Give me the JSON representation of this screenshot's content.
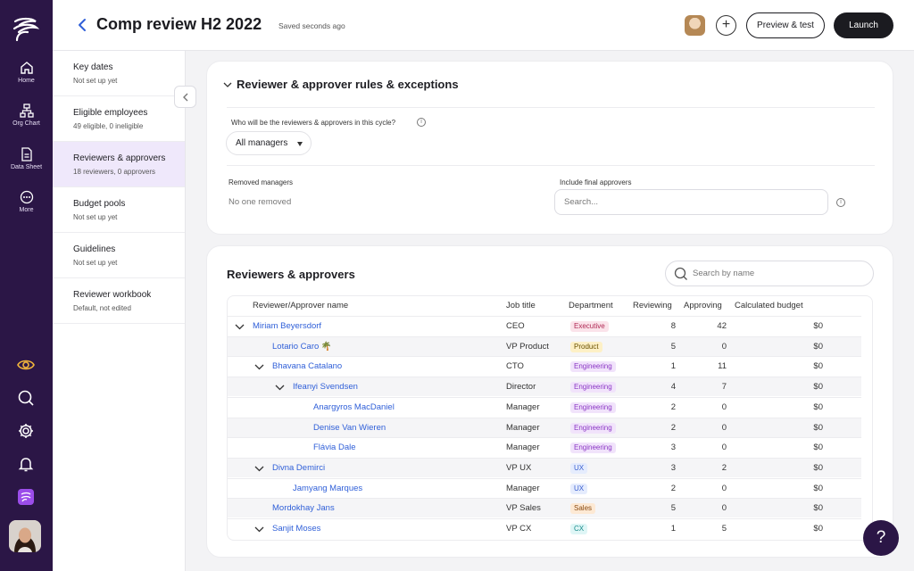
{
  "rail": {
    "items": [
      {
        "label": "Home",
        "icon": "home-icon"
      },
      {
        "label": "Org Chart",
        "icon": "org-chart-icon"
      },
      {
        "label": "Data Sheet",
        "icon": "data-sheet-icon"
      },
      {
        "label": "More",
        "icon": "more-icon"
      }
    ],
    "bottom_icons": [
      "eye-icon",
      "search-icon",
      "gear-icon",
      "bell-icon",
      "app-icon"
    ]
  },
  "header": {
    "title": "Comp review H2 2022",
    "saved_status": "Saved seconds ago",
    "add_label": "+",
    "preview_label": "Preview & test",
    "launch_label": "Launch"
  },
  "sidenav": {
    "items": [
      {
        "title": "Key dates",
        "sub": "Not set up yet"
      },
      {
        "title": "Eligible employees",
        "sub": "49 eligible, 0 ineligible"
      },
      {
        "title": "Reviewers & approvers",
        "sub": "18 reviewers, 0 approvers"
      },
      {
        "title": "Budget pools",
        "sub": "Not set up yet"
      },
      {
        "title": "Guidelines",
        "sub": "Not set up yet"
      },
      {
        "title": "Reviewer workbook",
        "sub": "Default, not edited"
      }
    ]
  },
  "rules": {
    "title": "Reviewer & approver rules & exceptions",
    "question": "Who will be the reviewers & approvers in this cycle?",
    "info_glyph": "i",
    "selected_option": "All managers",
    "removed_label": "Removed managers",
    "removed_value": "No one removed",
    "final_label": "Include final approvers",
    "final_placeholder": "Search..."
  },
  "reviewers": {
    "title": "Reviewers & approvers",
    "search_placeholder": "Search by name",
    "columns": [
      "Reviewer/Approver name",
      "Job title",
      "Department",
      "Reviewing",
      "Approving",
      "Calculated budget"
    ],
    "rows": [
      {
        "name": "Miriam Beyersdorf",
        "job": "CEO",
        "dept": "Executive",
        "reviewing": "8",
        "approving": "42",
        "budget": "$0",
        "level": 0,
        "expanded": true
      },
      {
        "name": "Lotario Caro 🌴",
        "job": "VP Product",
        "dept": "Product",
        "reviewing": "5",
        "approving": "0",
        "budget": "$0",
        "level": 1,
        "expanded": false
      },
      {
        "name": "Bhavana Catalano",
        "job": "CTO",
        "dept": "Engineering",
        "reviewing": "1",
        "approving": "11",
        "budget": "$0",
        "level": 1,
        "expanded": true
      },
      {
        "name": "Ifeanyi Svendsen",
        "job": "Director",
        "dept": "Engineering",
        "reviewing": "4",
        "approving": "7",
        "budget": "$0",
        "level": 2,
        "expanded": true
      },
      {
        "name": "Anargyros MacDaniel",
        "job": "Manager",
        "dept": "Engineering",
        "reviewing": "2",
        "approving": "0",
        "budget": "$0",
        "level": 3,
        "expanded": false
      },
      {
        "name": "Denise Van Wieren",
        "job": "Manager",
        "dept": "Engineering",
        "reviewing": "2",
        "approving": "0",
        "budget": "$0",
        "level": 3,
        "expanded": false
      },
      {
        "name": "Flávia Dale",
        "job": "Manager",
        "dept": "Engineering",
        "reviewing": "3",
        "approving": "0",
        "budget": "$0",
        "level": 3,
        "expanded": false
      },
      {
        "name": "Divna Demirci",
        "job": "VP UX",
        "dept": "UX",
        "reviewing": "3",
        "approving": "2",
        "budget": "$0",
        "level": 1,
        "expanded": true
      },
      {
        "name": "Jamyang Marques",
        "job": "Manager",
        "dept": "UX",
        "reviewing": "2",
        "approving": "0",
        "budget": "$0",
        "level": 2,
        "expanded": false
      },
      {
        "name": "Mordokhay Jans",
        "job": "VP Sales",
        "dept": "Sales",
        "reviewing": "5",
        "approving": "0",
        "budget": "$0",
        "level": 1,
        "expanded": false
      },
      {
        "name": "Sanjit Moses",
        "job": "VP CX",
        "dept": "CX",
        "reviewing": "1",
        "approving": "5",
        "budget": "$0",
        "level": 1,
        "expanded": true
      }
    ]
  },
  "dept_colors": {
    "Executive": {
      "bg": "#fbe3ea",
      "fg": "#b02a55"
    },
    "Product": {
      "bg": "#fdf0c6",
      "fg": "#6b5200"
    },
    "Engineering": {
      "bg": "#f1e3fb",
      "fg": "#8a36c4"
    },
    "UX": {
      "bg": "#e5ecfd",
      "fg": "#3a5fd0"
    },
    "Sales": {
      "bg": "#fde9d4",
      "fg": "#8a4a10"
    },
    "CX": {
      "bg": "#dff6f6",
      "fg": "#178a8a"
    }
  },
  "help": {
    "label": "?"
  }
}
